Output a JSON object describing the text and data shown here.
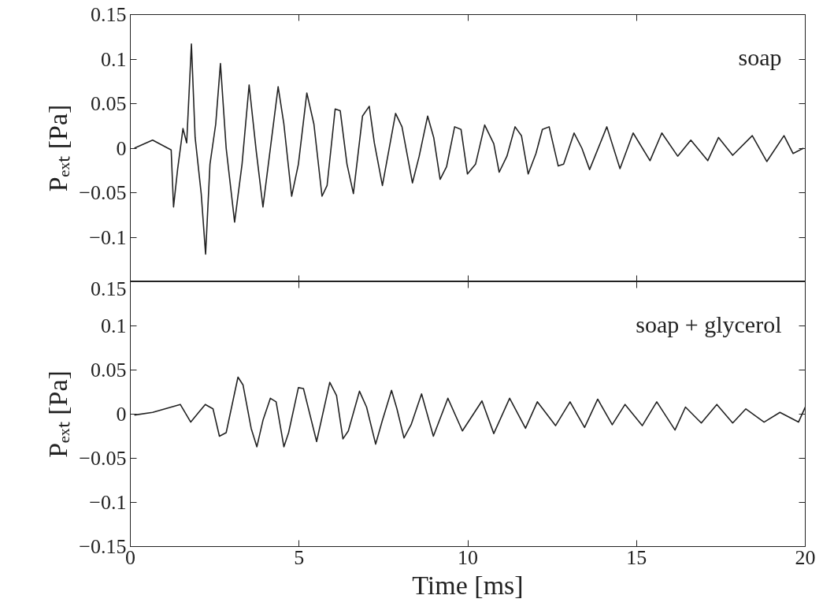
{
  "chart_data": [
    {
      "type": "line",
      "ylabel": "Pₑₓₜ [Pa]",
      "annotations": [
        "soap"
      ],
      "grid": false,
      "tick_labels": "y",
      "line_style": "solid",
      "xlim": [
        0,
        20
      ],
      "xticks": [
        0,
        5,
        10,
        15,
        20
      ],
      "ylim": [
        -0.15,
        0.15
      ],
      "yticks": [
        {
          "value": -0.15,
          "label": null
        },
        {
          "value": -0.1,
          "label": "−0.1"
        },
        {
          "value": -0.05,
          "label": "−0.05"
        },
        0,
        0.05,
        0.1,
        0.15
      ],
      "series": [
        {
          "color": "#222222",
          "x": [
            0.12,
            0.66,
            1.21,
            1.28,
            1.4,
            1.56,
            1.67,
            1.81,
            1.92,
            2.1,
            2.23,
            2.36,
            2.53,
            2.67,
            2.84,
            3.09,
            3.31,
            3.52,
            3.73,
            3.93,
            4.16,
            4.38,
            4.55,
            4.78,
            4.98,
            5.23,
            5.44,
            5.68,
            5.83,
            6.07,
            6.22,
            6.42,
            6.61,
            6.88,
            7.08,
            7.23,
            7.47,
            7.86,
            8.05,
            8.36,
            8.56,
            8.81,
            8.99,
            9.18,
            9.37,
            9.61,
            9.8,
            9.99,
            10.23,
            10.5,
            10.77,
            10.93,
            11.16,
            11.4,
            11.59,
            11.79,
            12.02,
            12.21,
            12.41,
            12.68,
            12.84,
            13.15,
            13.38,
            13.61,
            14.12,
            14.51,
            14.9,
            15.4,
            15.75,
            16.22,
            16.61,
            17.11,
            17.43,
            17.85,
            18.43,
            18.86,
            19.37,
            19.64,
            19.95
          ],
          "values": [
            0,
            0.009,
            -0.002,
            -0.066,
            -0.024,
            0.022,
            0.006,
            0.117,
            0.012,
            -0.051,
            -0.119,
            -0.018,
            0.027,
            0.095,
            0,
            -0.083,
            -0.018,
            0.071,
            -0.003,
            -0.066,
            0.003,
            0.069,
            0.027,
            -0.054,
            -0.018,
            0.062,
            0.027,
            -0.054,
            -0.042,
            0.044,
            0.042,
            -0.018,
            -0.051,
            0.036,
            0.047,
            0.006,
            -0.042,
            0.039,
            0.024,
            -0.039,
            -0.009,
            0.036,
            0.012,
            -0.035,
            -0.021,
            0.024,
            0.021,
            -0.029,
            -0.018,
            0.026,
            0.005,
            -0.027,
            -0.009,
            0.024,
            0.014,
            -0.029,
            -0.006,
            0.021,
            0.024,
            -0.02,
            -0.018,
            0.017,
            0,
            -0.024,
            0.024,
            -0.023,
            0.017,
            -0.014,
            0.017,
            -0.009,
            0.009,
            -0.014,
            0.012,
            -0.008,
            0.014,
            -0.015,
            0.014,
            -0.006,
            0
          ]
        }
      ]
    },
    {
      "type": "line",
      "ylabel": "Pₑₓₜ [Pa]",
      "xlabel": "Time [ms]",
      "annotations": [
        "soap + glycerol"
      ],
      "grid": false,
      "line_style": "solid",
      "xlim": [
        0,
        20
      ],
      "xticks": [
        0,
        5,
        10,
        15,
        20
      ],
      "ylim": [
        -0.15,
        0.15
      ],
      "yticks": [
        {
          "value": -0.15,
          "label": "−0.15"
        },
        {
          "value": -0.1,
          "label": "−0.1"
        },
        {
          "value": -0.05,
          "label": "−0.05"
        },
        0,
        0.05,
        0.1,
        0.15
      ],
      "series": [
        {
          "color": "#222222",
          "x": [
            0.12,
            0.66,
            1.48,
            1.79,
            2.22,
            2.45,
            2.64,
            2.84,
            3.19,
            3.34,
            3.58,
            3.75,
            3.93,
            4.15,
            4.32,
            4.55,
            4.69,
            4.98,
            5.13,
            5.52,
            5.91,
            6.11,
            6.3,
            6.46,
            6.79,
            7.0,
            7.27,
            7.47,
            7.74,
            7.9,
            8.11,
            8.32,
            8.63,
            8.98,
            9.41,
            9.84,
            10.42,
            10.77,
            11.24,
            11.71,
            12.06,
            12.6,
            13.03,
            13.46,
            13.85,
            14.28,
            14.66,
            15.17,
            15.6,
            16.14,
            16.45,
            16.92,
            17.38,
            17.85,
            18.24,
            18.78,
            19.25,
            19.8,
            20.0
          ],
          "values": [
            -0.001,
            0.002,
            0.011,
            -0.009,
            0.011,
            0.006,
            -0.025,
            -0.021,
            0.042,
            0.033,
            -0.016,
            -0.037,
            -0.007,
            0.018,
            0.014,
            -0.037,
            -0.021,
            0.03,
            0.029,
            -0.031,
            0.036,
            0.021,
            -0.028,
            -0.019,
            0.026,
            0.008,
            -0.034,
            -0.007,
            0.027,
            0.006,
            -0.027,
            -0.012,
            0.023,
            -0.025,
            0.018,
            -0.019,
            0.015,
            -0.022,
            0.018,
            -0.016,
            0.014,
            -0.013,
            0.014,
            -0.015,
            0.017,
            -0.012,
            0.011,
            -0.013,
            0.014,
            -0.018,
            0.008,
            -0.01,
            0.011,
            -0.01,
            0.006,
            -0.009,
            0.002,
            -0.009,
            0.008
          ]
        }
      ]
    }
  ]
}
